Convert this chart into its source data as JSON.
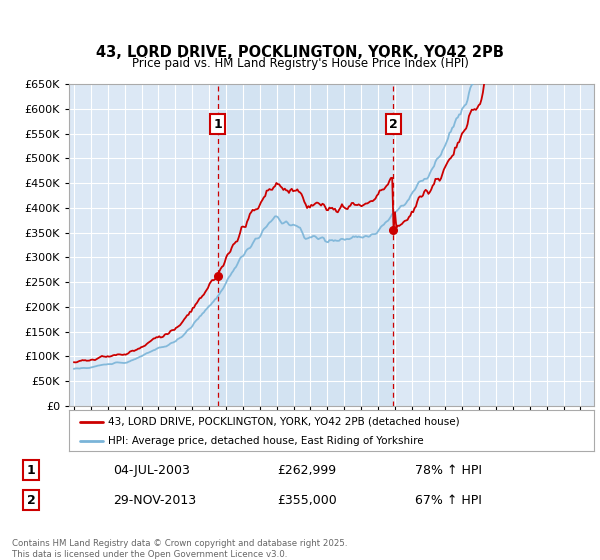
{
  "title_line1": "43, LORD DRIVE, POCKLINGTON, YORK, YO42 2PB",
  "title_line2": "Price paid vs. HM Land Registry's House Price Index (HPI)",
  "legend_line1": "43, LORD DRIVE, POCKLINGTON, YORK, YO42 2PB (detached house)",
  "legend_line2": "HPI: Average price, detached house, East Riding of Yorkshire",
  "annotation1_label": "1",
  "annotation1_date": "04-JUL-2003",
  "annotation1_price": "£262,999",
  "annotation1_hpi": "78% ↑ HPI",
  "annotation2_label": "2",
  "annotation2_date": "29-NOV-2013",
  "annotation2_price": "£355,000",
  "annotation2_hpi": "67% ↑ HPI",
  "footer": "Contains HM Land Registry data © Crown copyright and database right 2025.\nThis data is licensed under the Open Government Licence v3.0.",
  "hpi_color": "#7ab4d8",
  "property_color": "#cc0000",
  "annotation_color": "#cc0000",
  "background_color": "#ffffff",
  "grid_color": "#cccccc",
  "highlight_color": "#dce8f5",
  "ylim_min": 0,
  "ylim_max": 650000,
  "ytick_step": 50000,
  "purchase1_year": 2003.5,
  "purchase1_price": 262999,
  "purchase2_year": 2013.92,
  "purchase2_price": 355000
}
